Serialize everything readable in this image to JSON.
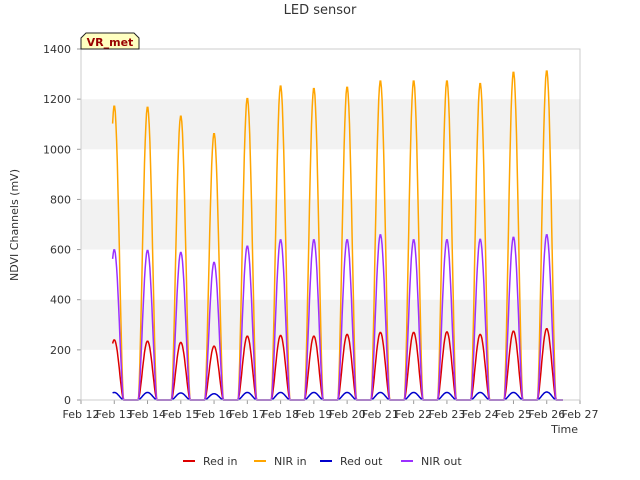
{
  "chart_data": {
    "type": "line",
    "title": "LED sensor",
    "xlabel": "Time",
    "ylabel": "NDVI Channels (mV)",
    "badge": "VR_met",
    "ylim": [
      0,
      1400
    ],
    "yticks": [
      0,
      200,
      400,
      600,
      800,
      1000,
      1200,
      1400
    ],
    "xlim": [
      "2024-02-12",
      "2024-02-27"
    ],
    "xtick_labels": [
      "Feb 12",
      "Feb 13",
      "Feb 14",
      "Feb 15",
      "Feb 16",
      "Feb 17",
      "Feb 18",
      "Feb 19",
      "Feb 20",
      "Feb 21",
      "Feb 22",
      "Feb 23",
      "Feb 24",
      "Feb 25",
      "Feb 26",
      "Feb 27"
    ],
    "grid": "horizontal bands",
    "legend": "bottom",
    "day_peaks": {
      "dates": [
        "Feb 13",
        "Feb 14",
        "Feb 15",
        "Feb 16",
        "Feb 17",
        "Feb 18",
        "Feb 19",
        "Feb 20",
        "Feb 21",
        "Feb 22",
        "Feb 23",
        "Feb 24",
        "Feb 25",
        "Feb 26"
      ]
    },
    "series": [
      {
        "name": "Red in",
        "color": "#dd0000",
        "peaks": [
          240,
          235,
          230,
          215,
          255,
          258,
          255,
          262,
          270,
          270,
          272,
          262,
          275,
          285
        ]
      },
      {
        "name": "NIR in",
        "color": "#ffa500",
        "peaks": [
          1175,
          1170,
          1135,
          1065,
          1205,
          1255,
          1245,
          1250,
          1275,
          1275,
          1275,
          1265,
          1310,
          1315
        ]
      },
      {
        "name": "Red out",
        "color": "#0000cc",
        "peaks": [
          30,
          30,
          28,
          25,
          30,
          30,
          30,
          30,
          30,
          30,
          30,
          30,
          30,
          32
        ]
      },
      {
        "name": "NIR out",
        "color": "#9b30ff",
        "peaks": [
          600,
          598,
          590,
          550,
          615,
          640,
          640,
          640,
          660,
          640,
          640,
          642,
          650,
          660
        ]
      }
    ]
  }
}
